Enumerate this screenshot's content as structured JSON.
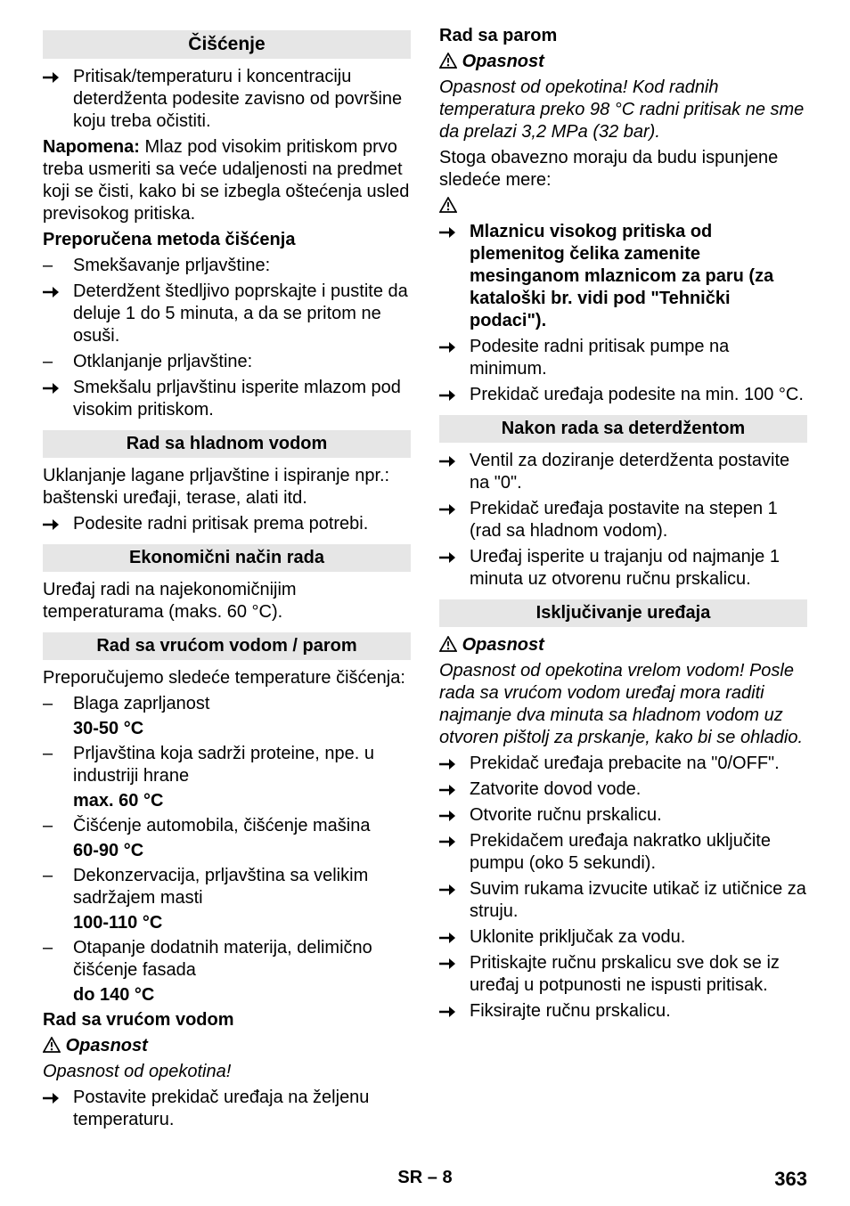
{
  "icons": {
    "arrow_svg": "<svg class='arrow-svg' width='18' height='14' viewBox='0 0 18 14'><line x1='0' y1='7' x2='13' y2='7' stroke='#000' stroke-width='2.5'/><polygon points='11,1 18,7 11,13' fill='#000'/></svg>",
    "warn_svg": "<svg class='warn-tri' width='20' height='18' viewBox='0 0 20 18'><polygon points='10,1 19,17 1,17' fill='none' stroke='#000' stroke-width='1.7'/><line x1='10' y1='6' x2='10' y2='11.5' stroke='#000' stroke-width='1.8'/><circle cx='10' cy='14.2' r='1.2' fill='#000'/></svg>"
  },
  "left": {
    "sec1_title": "Čišćenje",
    "sec1_b1": "Pritisak/temperaturu i koncentraciju deterdženta podesite zavisno od površine koju treba očistiti.",
    "sec1_note_label": "Napomena:",
    "sec1_note_text": " Mlaz pod visokim pritiskom prvo treba usmeriti sa veće udaljenosti na predmet koji se čisti, kako bi se izbegla oštećenja usled previsokog pritiska.",
    "sec1_sub1": "Preporučena metoda čišćenja",
    "sec1_d1": "Smekšavanje prljavštine:",
    "sec1_b2": "Deterdžent štedljivo poprskajte i pustite da deluje 1 do 5 minuta, a da se pritom ne osuši.",
    "sec1_d2": "Otklanjanje prljavštine:",
    "sec1_b3": "Smekšalu prljavštinu isperite mlazom pod visokim pritiskom.",
    "sec2_title": "Rad sa hladnom vodom",
    "sec2_p1": "Uklanjanje lagane prljavštine i ispiranje npr.: baštenski uređaji, terase, alati itd.",
    "sec2_b1": "Podesite radni pritisak prema potrebi.",
    "sec3_title": "Ekonomični način rada",
    "sec3_p1": "Uređaj radi na najekonomičnijim temperaturama (maks. 60 °C).",
    "sec4_title": "Rad sa vrućom vodom / parom",
    "sec4_p1": "Preporučujemo sledeće temperature čišćenja:",
    "sec4_d1": "Blaga zaprljanost",
    "sec4_d1b": "30-50 °C",
    "sec4_d2": "Prljavština koja sadrži proteine, npe. u industriji hrane",
    "sec4_d2b": "max. 60 °C",
    "sec4_d3": "Čišćenje automobila, čišćenje mašina",
    "sec4_d3b": "60-90 °C",
    "sec4_d4": "Dekonzervacija, prljavština sa velikim sadržajem masti",
    "sec4_d4b": "100-110 °C",
    "sec4_d5": "Otapanje dodatnih materija, delimično čišćenje fasada",
    "sec4_d5b": "do 140 °C",
    "sec4_sub1": "Rad sa vrućom vodom",
    "sec4_warn_label": "Opasnost",
    "sec4_warn_text": "Opasnost od opekotina!",
    "sec4_b1": "Postavite prekidač uređaja na željenu temperaturu."
  },
  "right": {
    "sec5_sub1": "Rad sa parom",
    "sec5_warn_label": "Opasnost",
    "sec5_warn_text": "Opasnost od opekotina! Kod radnih temperatura preko 98 °C radni pritisak ne sme da prelazi 3,2 MPa (32 bar).",
    "sec5_p1": "Stoga obavezno moraju da budu ispunjene sledeće mere:",
    "sec5_b1": "Mlaznicu visokog pritiska od plemenitog čelika zamenite mesinganom mlaznicom za paru (za kataloški br. vidi pod \"Tehnički podaci\").",
    "sec5_b2": "Podesite radni pritisak pumpe na minimum.",
    "sec5_b3": "Prekidač uređaja podesite na min. 100 °C.",
    "sec6_title": "Nakon rada sa deterdžentom",
    "sec6_b1": "Ventil za doziranje deterdženta postavite na \"0\".",
    "sec6_b2": "Prekidač uređaja postavite na stepen 1 (rad sa hladnom vodom).",
    "sec6_b3": "Uređaj isperite u trajanju od najmanje 1 minuta uz otvorenu ručnu prskalicu.",
    "sec7_title": "Isključivanje uređaja",
    "sec7_warn_label": "Opasnost",
    "sec7_warn_text": "Opasnost od opekotina vrelom vodom! Posle rada sa vrućom vodom uređaj mora raditi najmanje dva minuta sa hladnom vodom uz otvoren pištolj za prskanje, kako bi se ohladio.",
    "sec7_b1": "Prekidač uređaja prebacite na \"0/OFF\".",
    "sec7_b2": "Zatvorite dovod vode.",
    "sec7_b3": "Otvorite ručnu prskalicu.",
    "sec7_b4": "Prekidačem uređaja nakratko uključite pumpu (oko 5 sekundi).",
    "sec7_b5": "Suvim rukama izvucite utikač iz utičnice za struju.",
    "sec7_b6": "Uklonite priključak za vodu.",
    "sec7_b7": "Pritiskajte ručnu prskalicu sve dok se iz uređaj u potpunosti ne ispusti pritisak.",
    "sec7_b8": "Fiksirajte ručnu prskalicu."
  },
  "footer": {
    "center": "SR – 8",
    "page": "363"
  }
}
